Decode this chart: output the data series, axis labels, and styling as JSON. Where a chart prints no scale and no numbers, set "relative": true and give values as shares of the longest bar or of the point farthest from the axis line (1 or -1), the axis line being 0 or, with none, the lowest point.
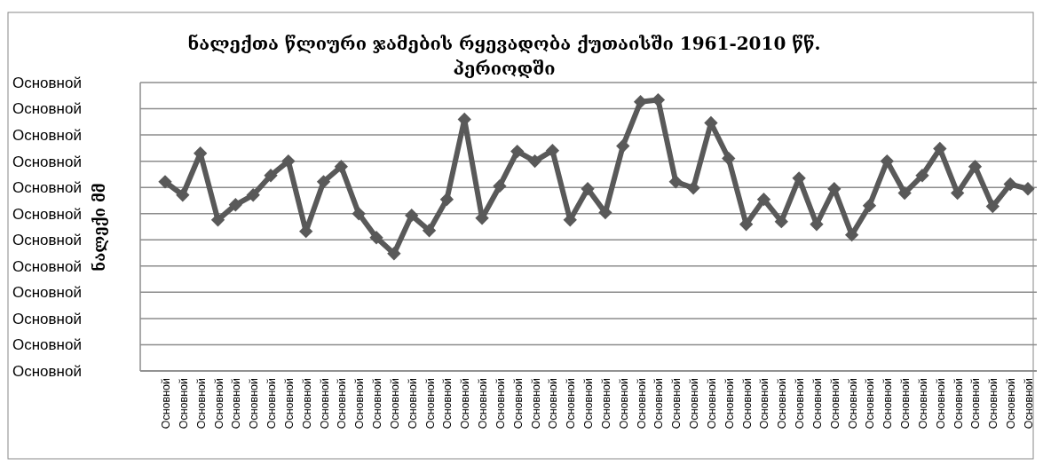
{
  "chart_data": {
    "type": "line",
    "title": "ნალექთა წლიური ჯამების რყევადობა ქუთაისში 1961-2010 წწ. პერიოდში",
    "ylabel": "ნალექი მმ",
    "relative": true,
    "color": "#595959",
    "marker": "diamond",
    "grid": "y",
    "annotations": [
      "Основной",
      "Основной",
      "Основной",
      "Основной",
      "Основной",
      "Основной",
      "Основной",
      "Основной",
      "Основной",
      "Основной",
      "Основной",
      "Основной"
    ],
    "categories": [
      "Основной",
      "Основной",
      "Основной",
      "Основной",
      "Основной",
      "Основной",
      "Основной",
      "Основной",
      "Основной",
      "Основной",
      "Основной",
      "Основной",
      "Основной",
      "Основной",
      "Основной",
      "Основной",
      "Основной",
      "Основной",
      "Основной",
      "Основной",
      "Основной",
      "Основной",
      "Основной",
      "Основной",
      "Основной",
      "Основной",
      "Основной",
      "Основной",
      "Основной",
      "Основной",
      "Основной",
      "Основной",
      "Основной",
      "Основной",
      "Основной",
      "Основной",
      "Основной",
      "Основной",
      "Основной",
      "Основной",
      "Основной",
      "Основной",
      "Основной",
      "Основной",
      "Основной",
      "Основной",
      "Основной",
      "Основной",
      "Основной",
      "Основной"
    ],
    "values": [
      0.698,
      0.649,
      0.803,
      0.557,
      0.613,
      0.649,
      0.721,
      0.774,
      0.515,
      0.698,
      0.754,
      0.58,
      0.492,
      0.433,
      0.574,
      0.518,
      0.633,
      0.928,
      0.564,
      0.682,
      0.81,
      0.774,
      0.813,
      0.557,
      0.672,
      0.584,
      0.83,
      0.993,
      1,
      0.698,
      0.675,
      0.915,
      0.784,
      0.541,
      0.633,
      0.551,
      0.711,
      0.541,
      0.672,
      0.502,
      0.61,
      0.774,
      0.656,
      0.721,
      0.82,
      0.656,
      0.754,
      0.607,
      0.689,
      0.672
    ]
  }
}
